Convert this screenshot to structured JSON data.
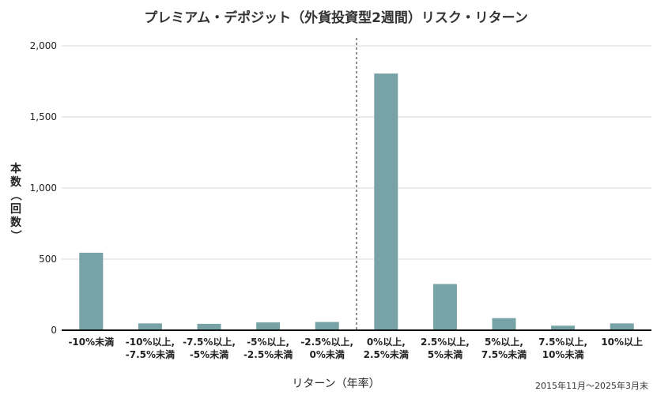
{
  "chart_data": {
    "type": "bar",
    "title": "プレミアム・デポジット（外貨投資型2週間）リスク・リターン",
    "xlabel": "リターン（年率）",
    "ylabel": "本数（回数）",
    "ylim": [
      0,
      2000
    ],
    "yticks": [
      "0",
      "500",
      "1,000",
      "1,500",
      "2,000"
    ],
    "ytick_values": [
      0,
      500,
      1000,
      1500,
      2000
    ],
    "grid": true,
    "categories": [
      [
        "-10%未満"
      ],
      [
        "-10%以上,",
        "-7.5%未満"
      ],
      [
        "-7.5%以上,",
        "-5%未満"
      ],
      [
        "-5%以上,",
        "-2.5%未満"
      ],
      [
        "-2.5%以上,",
        "0%未満"
      ],
      [
        "0%以上,",
        "2.5%未満"
      ],
      [
        "2.5%以上,",
        "5%未満"
      ],
      [
        "5%以上,",
        "7.5%未満"
      ],
      [
        "7.5%以上,",
        "10%未満"
      ],
      [
        "10%以上"
      ]
    ],
    "values": [
      545,
      48,
      45,
      55,
      58,
      1805,
      325,
      85,
      32,
      48
    ],
    "reference_line": {
      "style": "dashed",
      "between_categories": [
        4,
        5
      ]
    },
    "bar_color": "#77a3a6",
    "note": "2015年11月〜2025年3月末"
  }
}
